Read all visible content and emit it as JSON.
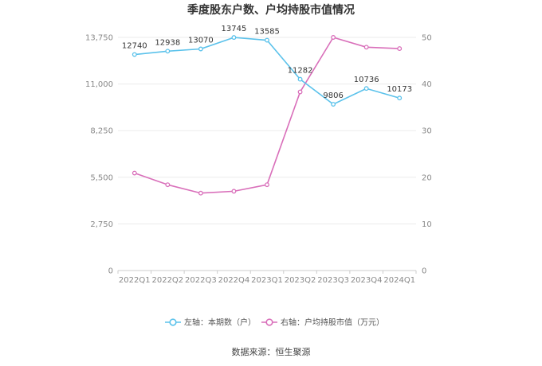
{
  "chart_data": {
    "type": "line",
    "title": "季度股东户数、户均持股市值情况",
    "categories": [
      "2022Q1",
      "2022Q2",
      "2022Q3",
      "2022Q4",
      "2023Q1",
      "2023Q2",
      "2023Q3",
      "2023Q4",
      "2024Q1"
    ],
    "left_axis": {
      "ticks": [
        "0",
        "2,750",
        "5,500",
        "8,250",
        "11,000",
        "13,750"
      ],
      "range": [
        0,
        13750
      ]
    },
    "right_axis": {
      "ticks": [
        "0",
        "10",
        "20",
        "30",
        "40",
        "50"
      ],
      "range": [
        0,
        50
      ]
    },
    "grid": true,
    "legend_position": "bottom",
    "series": [
      {
        "name": "左轴：本期数（户）",
        "axis": "left",
        "color": "#5bc2eb",
        "values": [
          12740,
          12938,
          13070,
          13745,
          13585,
          11282,
          9806,
          10736,
          10173
        ],
        "labels": [
          "12740",
          "12938",
          "13070",
          "13745",
          "13585",
          "11282",
          "9806",
          "10736",
          "10173"
        ]
      },
      {
        "name": "右轴：户均持股市值（万元）",
        "axis": "right",
        "color": "#d96fba",
        "values": [
          20.9,
          18.4,
          16.6,
          17.0,
          18.4,
          38.3,
          50.0,
          47.9,
          47.6
        ]
      }
    ]
  },
  "source": "数据来源：恒生聚源"
}
